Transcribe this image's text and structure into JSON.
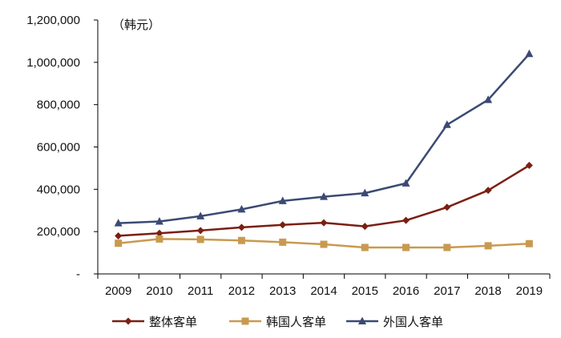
{
  "chart_data": {
    "type": "line",
    "title": "",
    "unit_label": "（韩元）",
    "xlabel": "",
    "ylabel": "",
    "categories": [
      "2009",
      "2010",
      "2011",
      "2012",
      "2013",
      "2014",
      "2015",
      "2016",
      "2017",
      "2018",
      "2019"
    ],
    "ylim": [
      0,
      1200000
    ],
    "yticks": [
      0,
      200000,
      400000,
      600000,
      800000,
      1000000,
      1200000
    ],
    "ytick_labels": [
      "-",
      "200,000",
      "400,000",
      "600,000",
      "800,000",
      "1,000,000",
      "1,200,000"
    ],
    "grid": false,
    "legend_position": "bottom",
    "series": [
      {
        "name": "整体客单",
        "color": "#7b1f12",
        "marker": "diamond",
        "values": [
          180000,
          192000,
          205000,
          220000,
          232000,
          242000,
          225000,
          253000,
          315000,
          395000,
          513000
        ]
      },
      {
        "name": "韩国人客单",
        "color": "#c89a50",
        "marker": "square",
        "values": [
          145000,
          165000,
          163000,
          158000,
          150000,
          140000,
          125000,
          125000,
          125000,
          133000,
          143000
        ]
      },
      {
        "name": "外国人客单",
        "color": "#3b4a73",
        "marker": "triangle",
        "values": [
          240000,
          248000,
          273000,
          305000,
          345000,
          365000,
          382000,
          428000,
          705000,
          823000,
          1040000
        ]
      }
    ]
  }
}
